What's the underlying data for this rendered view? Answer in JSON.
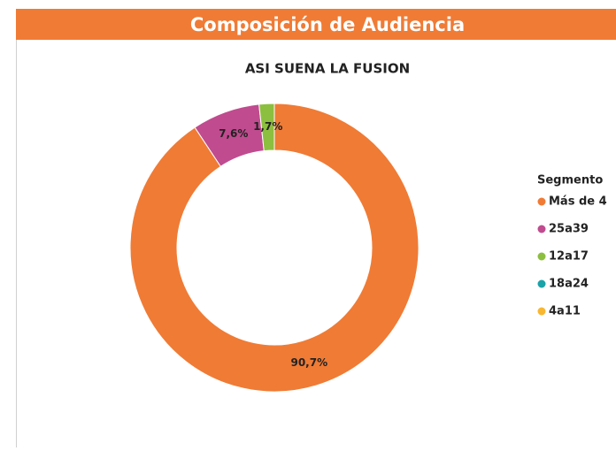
{
  "header": {
    "title": "Composición de Audiencia"
  },
  "chart_data": {
    "type": "donut",
    "title": "ASI SUENA LA FUSION",
    "legend_title": "Segmento",
    "categories": [
      "Más de 4",
      "25a39",
      "12a17",
      "18a24",
      "4a11"
    ],
    "values": [
      90.7,
      7.6,
      1.7,
      0,
      0
    ],
    "value_labels": [
      "90,7%",
      "7,6%",
      "1,7%",
      null,
      null
    ],
    "colors": [
      "#f07b35",
      "#c04b8f",
      "#8cbf3f",
      "#1aa3a8",
      "#f7b731"
    ],
    "legend": "right"
  }
}
